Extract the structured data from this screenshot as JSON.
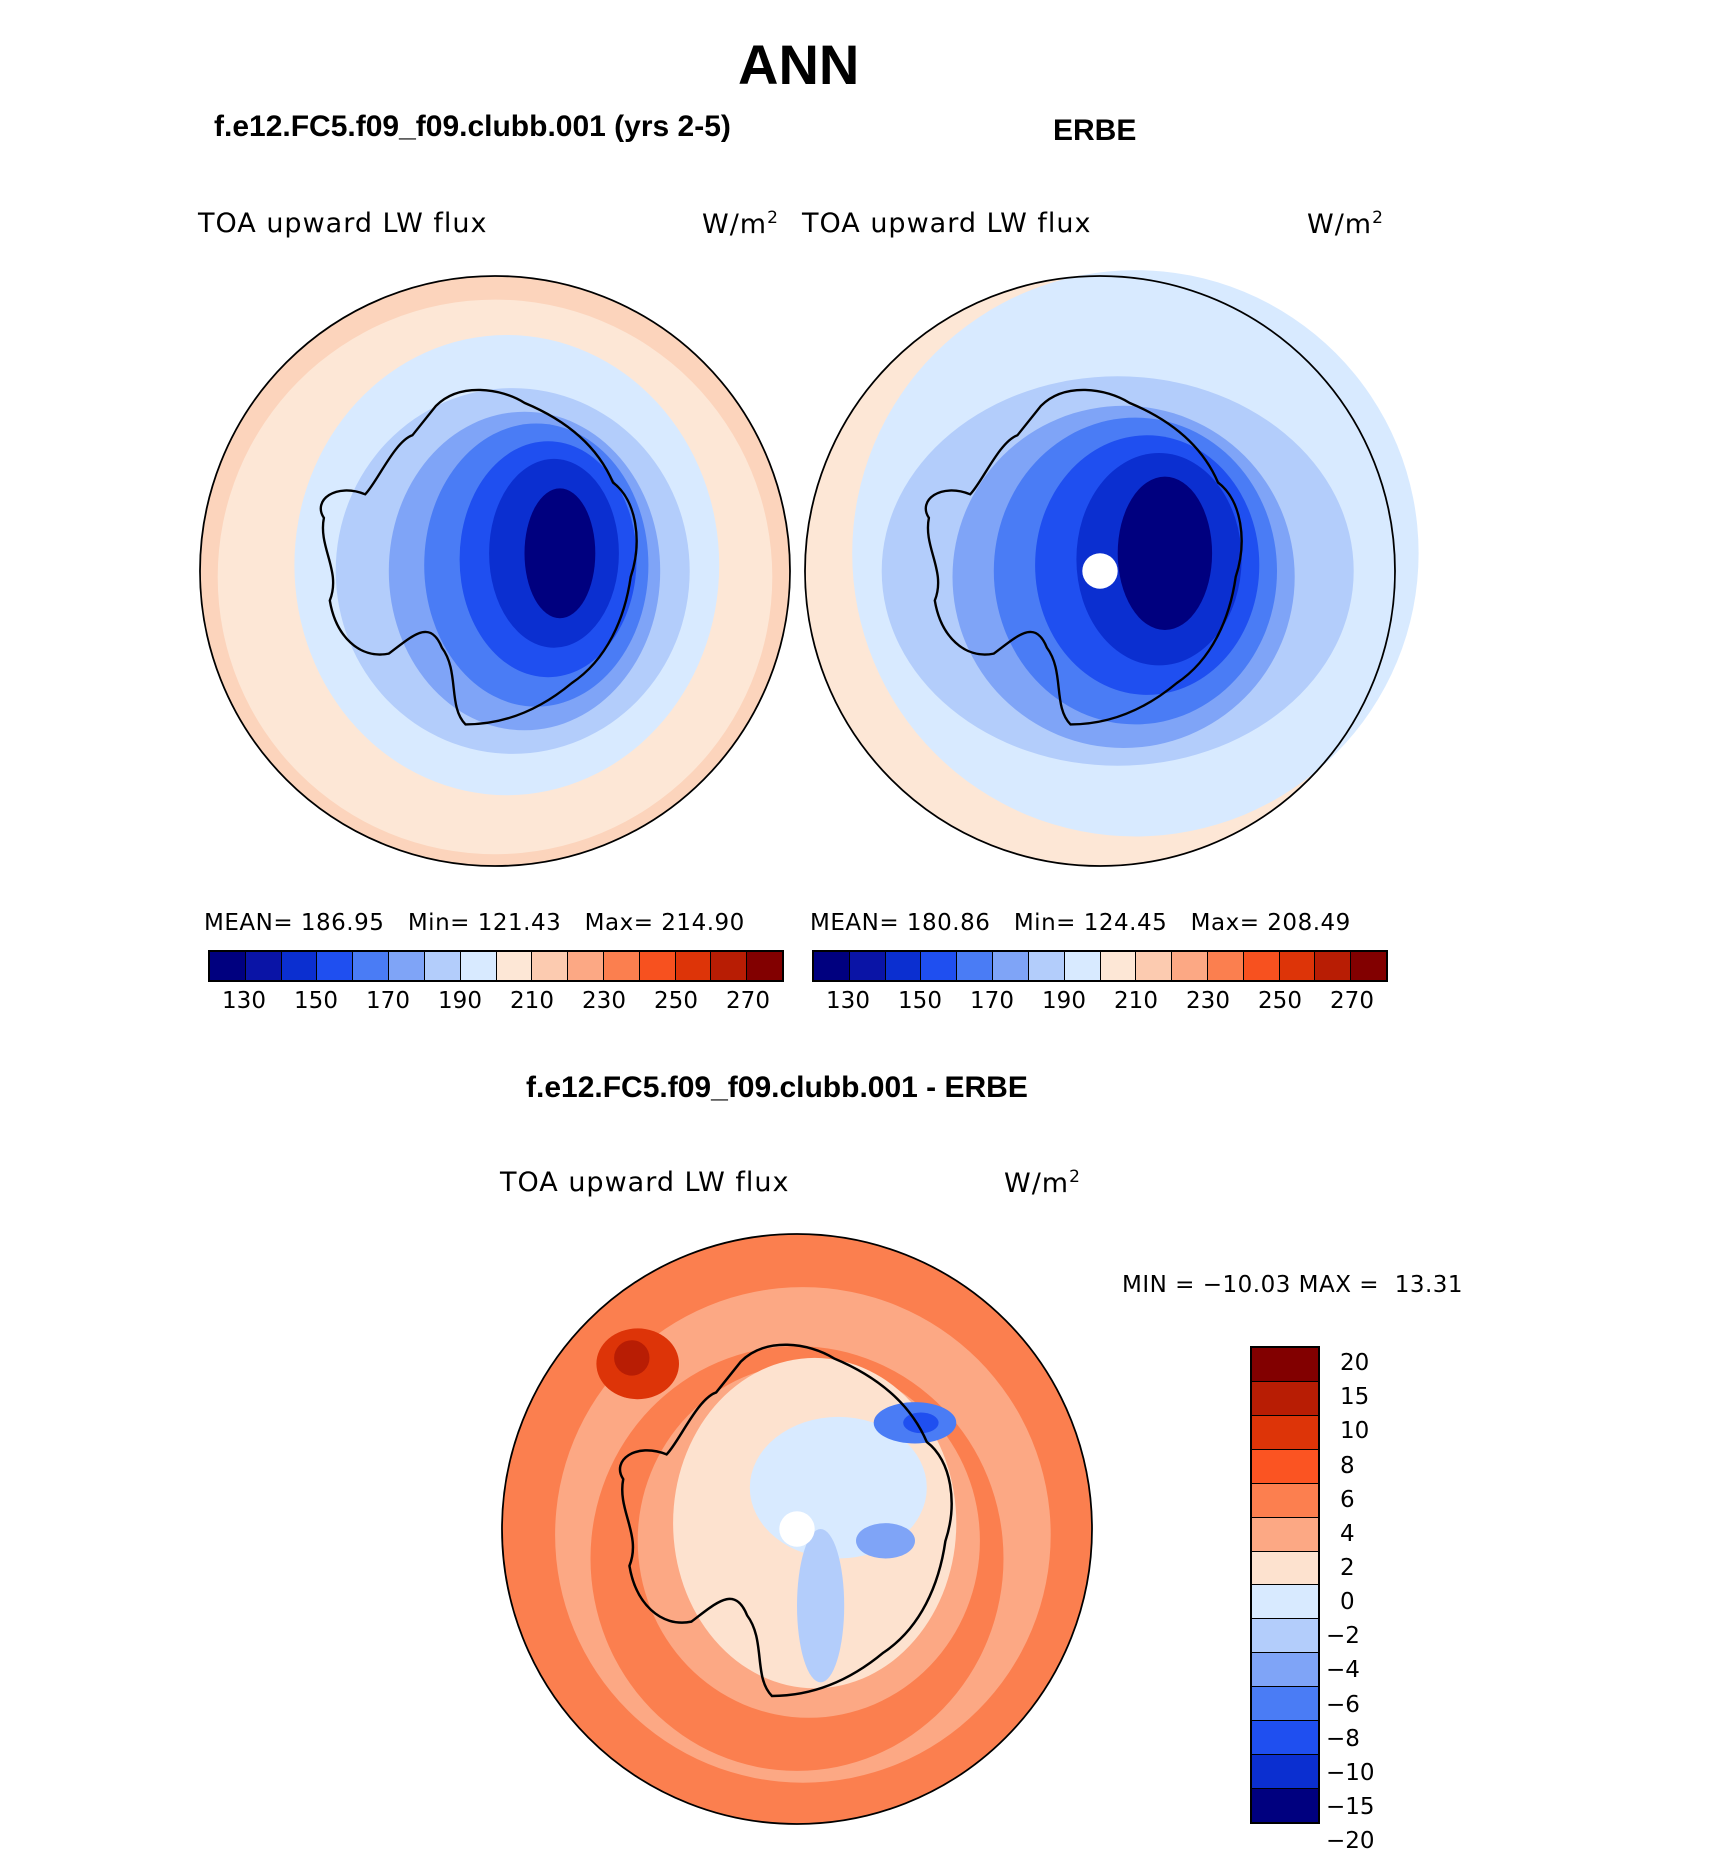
{
  "figure": {
    "season": "ANN",
    "panels": [
      {
        "title": "f.e12.FC5.f09_f09.clubb.001 (yrs 2-5)",
        "variable": "TOA upward LW flux",
        "units": "W/m",
        "units_exp": "2",
        "stats": {
          "mean_label": "MEAN=",
          "mean": "186.95",
          "min_label": "Min=",
          "min": "121.43",
          "max_label": "Max=",
          "max": "214.90"
        }
      },
      {
        "title": "ERBE",
        "variable": "TOA upward LW flux",
        "units": "W/m",
        "units_exp": "2",
        "stats": {
          "mean_label": "MEAN=",
          "mean": "180.86",
          "min_label": "Min=",
          "min": "124.45",
          "max_label": "Max=",
          "max": "208.49"
        }
      }
    ],
    "diff": {
      "title": "f.e12.FC5.f09_f09.clubb.001 - ERBE",
      "variable": "TOA upward LW flux",
      "units": "W/m",
      "units_exp": "2",
      "minmax": "MIN = −10.03 MAX =  13.31"
    }
  },
  "colorbar_top": {
    "colors": [
      "#00007f",
      "#0a14a6",
      "#0b2fd0",
      "#1f4ff0",
      "#4a7cf5",
      "#7fa4f7",
      "#b3cdfb",
      "#d8eaff",
      "#fde7d6",
      "#fccbb0",
      "#fca884",
      "#fb7f4f",
      "#f7511f",
      "#dd3408",
      "#b81d04",
      "#820000"
    ],
    "labels": [
      "130",
      "150",
      "170",
      "190",
      "210",
      "230",
      "250",
      "270"
    ]
  },
  "colorbar_diff": {
    "colors": [
      "#820000",
      "#b81d04",
      "#dd3408",
      "#fb5422",
      "#fc7f4f",
      "#fca884",
      "#fde2cf",
      "#d8eaff",
      "#b3cdfb",
      "#7fa4f7",
      "#4a7cf5",
      "#1f4ff0",
      "#0b2fd0",
      "#00007f"
    ],
    "labels": [
      "20",
      "15",
      "10",
      "8",
      "6",
      "4",
      "2",
      "0",
      "−2",
      "−4",
      "−6",
      "−8",
      "−10",
      "−15",
      "−20"
    ]
  }
}
